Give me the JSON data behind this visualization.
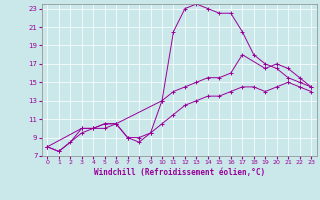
{
  "xlabel": "Windchill (Refroidissement éolien,°C)",
  "xlim": [
    -0.5,
    23.5
  ],
  "ylim": [
    7,
    23.5
  ],
  "xticks": [
    0,
    1,
    2,
    3,
    4,
    5,
    6,
    7,
    8,
    9,
    10,
    11,
    12,
    13,
    14,
    15,
    16,
    17,
    18,
    19,
    20,
    21,
    22,
    23
  ],
  "yticks": [
    7,
    9,
    11,
    13,
    15,
    17,
    19,
    21,
    23
  ],
  "bg_color": "#cae8ea",
  "line_color": "#990099",
  "grid_color": "#ffffff",
  "series": [
    {
      "x": [
        0,
        1,
        2,
        3,
        4,
        5,
        6,
        7,
        8,
        9,
        10,
        11,
        12,
        13,
        14,
        15,
        16,
        17,
        18,
        19,
        20,
        21,
        22,
        23
      ],
      "y": [
        8.0,
        7.5,
        8.5,
        10.0,
        10.0,
        10.5,
        10.5,
        9.0,
        9.0,
        9.5,
        13.0,
        20.5,
        23.0,
        23.5,
        23.0,
        22.5,
        22.5,
        20.5,
        18.0,
        17.0,
        16.5,
        15.5,
        15.0,
        14.5
      ]
    },
    {
      "x": [
        0,
        3,
        4,
        5,
        6,
        10,
        11,
        12,
        13,
        14,
        15,
        16,
        17,
        19,
        20,
        21,
        22,
        23
      ],
      "y": [
        8.0,
        10.0,
        10.0,
        10.5,
        10.5,
        13.0,
        14.0,
        14.5,
        15.0,
        15.5,
        15.5,
        16.0,
        18.0,
        16.5,
        17.0,
        16.5,
        15.5,
        14.5
      ]
    },
    {
      "x": [
        0,
        1,
        3,
        4,
        5,
        6,
        7,
        8,
        9,
        10,
        11,
        12,
        13,
        14,
        15,
        16,
        17,
        18,
        19,
        20,
        21,
        22,
        23
      ],
      "y": [
        8.0,
        7.5,
        9.5,
        10.0,
        10.0,
        10.5,
        9.0,
        8.5,
        9.5,
        10.5,
        11.5,
        12.5,
        13.0,
        13.5,
        13.5,
        14.0,
        14.5,
        14.5,
        14.0,
        14.5,
        15.0,
        14.5,
        14.0
      ]
    }
  ]
}
